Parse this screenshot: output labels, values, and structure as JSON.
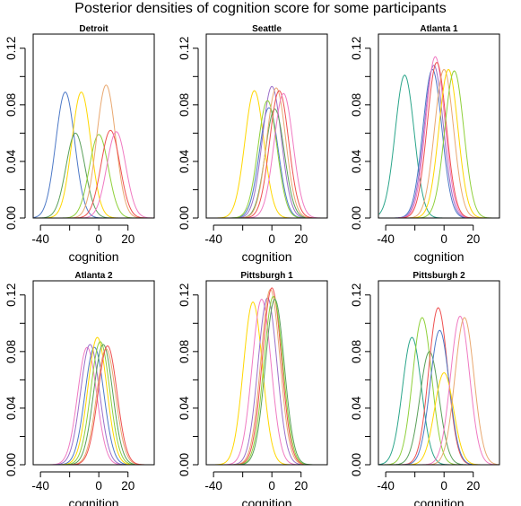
{
  "figure": {
    "title": "Posterior densities of cognition score for some participants"
  },
  "chart_data": [
    {
      "type": "line",
      "title": "Detroit",
      "xlabel": "cognition",
      "ylabel": "",
      "xlim": [
        -45,
        38
      ],
      "ylim": [
        0,
        0.13
      ],
      "xticks": [
        -40,
        -20,
        0,
        20
      ],
      "xtick_labels": [
        "-40",
        "",
        "0",
        "20"
      ],
      "yticks": [
        0.0,
        0.02,
        0.04,
        0.06,
        0.08,
        0.1,
        0.12
      ],
      "ytick_labels": [
        "0.00",
        "",
        "0.04",
        "",
        "0.08",
        "",
        "0.12"
      ],
      "grid": false,
      "series": [
        {
          "color": "#4d79c7",
          "mean": -23,
          "peak": 0.089
        },
        {
          "color": "#ffd700",
          "mean": -12,
          "peak": 0.089
        },
        {
          "color": "#5aa05a",
          "mean": -16,
          "peak": 0.06
        },
        {
          "color": "#8fd03a",
          "mean": 0,
          "peak": 0.059
        },
        {
          "color": "#e9a870",
          "mean": 5,
          "peak": 0.094
        },
        {
          "color": "#ee5050",
          "mean": 8,
          "peak": 0.062
        },
        {
          "color": "#f07ac2",
          "mean": 12,
          "peak": 0.061
        }
      ]
    },
    {
      "type": "line",
      "title": "Seattle",
      "xlabel": "cognition",
      "ylabel": "",
      "xlim": [
        -45,
        38
      ],
      "ylim": [
        0,
        0.13
      ],
      "xticks": [
        -40,
        -20,
        0,
        20
      ],
      "xtick_labels": [
        "-40",
        "",
        "0",
        "20"
      ],
      "yticks": [
        0.0,
        0.02,
        0.04,
        0.06,
        0.08,
        0.1,
        0.12
      ],
      "ytick_labels": [
        "0.00",
        "",
        "0.04",
        "",
        "0.08",
        "",
        "0.12"
      ],
      "grid": false,
      "series": [
        {
          "color": "#ffd700",
          "mean": -12,
          "peak": 0.09
        },
        {
          "color": "#4d79c7",
          "mean": -2,
          "peak": 0.078
        },
        {
          "color": "#9b6fc9",
          "mean": 0,
          "peak": 0.093
        },
        {
          "color": "#8fd03a",
          "mean": -3,
          "peak": 0.083
        },
        {
          "color": "#5aa05a",
          "mean": 2,
          "peak": 0.077
        },
        {
          "color": "#e9a870",
          "mean": 3,
          "peak": 0.092
        },
        {
          "color": "#ee5050",
          "mean": 5,
          "peak": 0.09
        },
        {
          "color": "#f07ac2",
          "mean": 8,
          "peak": 0.088
        }
      ]
    },
    {
      "type": "line",
      "title": "Atlanta 1",
      "xlabel": "cognition",
      "ylabel": "",
      "xlim": [
        -45,
        38
      ],
      "ylim": [
        0,
        0.13
      ],
      "xticks": [
        -40,
        -20,
        0,
        20
      ],
      "xtick_labels": [
        "-40",
        "",
        "0",
        "20"
      ],
      "yticks": [
        0.0,
        0.02,
        0.04,
        0.06,
        0.08,
        0.1,
        0.12
      ],
      "ytick_labels": [
        "0.00",
        "",
        "0.04",
        "",
        "0.08",
        "",
        "0.12"
      ],
      "grid": false,
      "series": [
        {
          "color": "#2aa58a",
          "mean": -27,
          "peak": 0.101
        },
        {
          "color": "#4d79c7",
          "mean": -8,
          "peak": 0.105
        },
        {
          "color": "#9b6fc9",
          "mean": -7,
          "peak": 0.108
        },
        {
          "color": "#f07ac2",
          "mean": -6,
          "peak": 0.114
        },
        {
          "color": "#ee5050",
          "mean": -5,
          "peak": 0.11
        },
        {
          "color": "#e9a870",
          "mean": 0,
          "peak": 0.105
        },
        {
          "color": "#ffd700",
          "mean": 3,
          "peak": 0.105
        },
        {
          "color": "#8fd03a",
          "mean": 7,
          "peak": 0.104
        }
      ]
    },
    {
      "type": "line",
      "title": "Atlanta 2",
      "xlabel": "cognition",
      "ylabel": "",
      "xlim": [
        -45,
        38
      ],
      "ylim": [
        0,
        0.13
      ],
      "xticks": [
        -40,
        -20,
        0,
        20
      ],
      "xtick_labels": [
        "-40",
        "",
        "0",
        "20"
      ],
      "yticks": [
        0.0,
        0.02,
        0.04,
        0.06,
        0.08,
        0.1,
        0.12
      ],
      "ytick_labels": [
        "0.00",
        "",
        "0.04",
        "",
        "0.08",
        "",
        "0.12"
      ],
      "grid": false,
      "series": [
        {
          "color": "#f07ac2",
          "mean": -8,
          "peak": 0.083
        },
        {
          "color": "#9b6fc9",
          "mean": -6,
          "peak": 0.085
        },
        {
          "color": "#4d79c7",
          "mean": -3,
          "peak": 0.083
        },
        {
          "color": "#ffd700",
          "mean": -1,
          "peak": 0.09
        },
        {
          "color": "#8fd03a",
          "mean": 1,
          "peak": 0.087
        },
        {
          "color": "#5aa05a",
          "mean": 3,
          "peak": 0.085
        },
        {
          "color": "#e9a870",
          "mean": 5,
          "peak": 0.082
        },
        {
          "color": "#ee5050",
          "mean": 6,
          "peak": 0.084
        }
      ]
    },
    {
      "type": "line",
      "title": "Pittsburgh 1",
      "xlabel": "cognition",
      "ylabel": "",
      "xlim": [
        -45,
        38
      ],
      "ylim": [
        0,
        0.13
      ],
      "xticks": [
        -40,
        -20,
        0,
        20
      ],
      "xtick_labels": [
        "-40",
        "",
        "0",
        "20"
      ],
      "yticks": [
        0.0,
        0.02,
        0.04,
        0.06,
        0.08,
        0.1,
        0.12
      ],
      "ytick_labels": [
        "0.00",
        "",
        "0.04",
        "",
        "0.08",
        "",
        "0.12"
      ],
      "grid": false,
      "series": [
        {
          "color": "#ffd700",
          "mean": -13,
          "peak": 0.115
        },
        {
          "color": "#f07ac2",
          "mean": -7,
          "peak": 0.117
        },
        {
          "color": "#9b6fc9",
          "mean": -3,
          "peak": 0.118
        },
        {
          "color": "#e9a870",
          "mean": -1,
          "peak": 0.124
        },
        {
          "color": "#ee5050",
          "mean": 0,
          "peak": 0.125
        },
        {
          "color": "#8fd03a",
          "mean": 1,
          "peak": 0.119
        },
        {
          "color": "#5aa05a",
          "mean": 2,
          "peak": 0.117
        }
      ]
    },
    {
      "type": "line",
      "title": "Pittsburgh 2",
      "xlabel": "cognition",
      "ylabel": "",
      "xlim": [
        -45,
        38
      ],
      "ylim": [
        0,
        0.13
      ],
      "xticks": [
        -40,
        -20,
        0,
        20
      ],
      "xtick_labels": [
        "-40",
        "",
        "0",
        "20"
      ],
      "yticks": [
        0.0,
        0.02,
        0.04,
        0.06,
        0.08,
        0.1,
        0.12
      ],
      "ytick_labels": [
        "0.00",
        "",
        "0.04",
        "",
        "0.08",
        "",
        "0.12"
      ],
      "grid": false,
      "series": [
        {
          "color": "#2aa58a",
          "mean": -22,
          "peak": 0.09
        },
        {
          "color": "#8fd03a",
          "mean": -15,
          "peak": 0.104
        },
        {
          "color": "#5aa05a",
          "mean": -10,
          "peak": 0.08
        },
        {
          "color": "#ee5050",
          "mean": -4,
          "peak": 0.111
        },
        {
          "color": "#4d79c7",
          "mean": -3,
          "peak": 0.095
        },
        {
          "color": "#ffd700",
          "mean": 0,
          "peak": 0.065
        },
        {
          "color": "#f07ac2",
          "mean": 11,
          "peak": 0.105
        },
        {
          "color": "#e9a870",
          "mean": 14,
          "peak": 0.104
        }
      ]
    }
  ]
}
